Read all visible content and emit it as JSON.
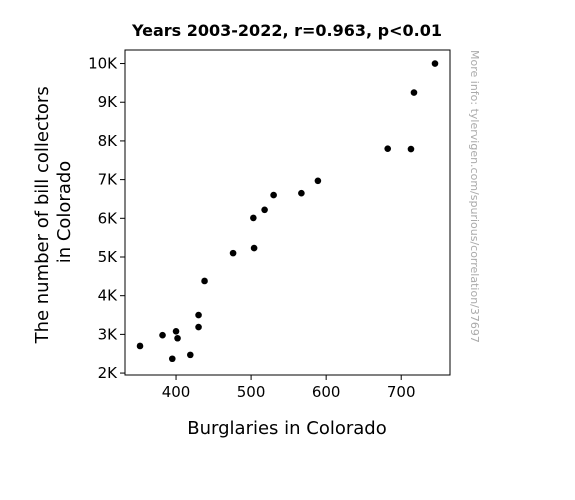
{
  "chart_data": {
    "type": "scatter",
    "title": "Years 2003-2022, r=0.963, p<0.01",
    "xlabel": "Burglaries in Colorado",
    "ylabel_lines": [
      "The number of bill collectors",
      "in Colorado"
    ],
    "xlim": [
      332,
      765
    ],
    "ylim": [
      1950,
      10350
    ],
    "x_ticks": [
      400,
      500,
      600,
      700
    ],
    "x_tick_labels": [
      "400",
      "500",
      "600",
      "700"
    ],
    "y_ticks": [
      2000,
      3000,
      4000,
      5000,
      6000,
      7000,
      8000,
      9000,
      10000
    ],
    "y_tick_labels": [
      "2K",
      "3K",
      "4K",
      "5K",
      "6K",
      "7K",
      "8K",
      "9K",
      "10K"
    ],
    "grid": false,
    "point_color": "#000000",
    "points": [
      {
        "x": 352,
        "y": 2700
      },
      {
        "x": 382,
        "y": 2980
      },
      {
        "x": 395,
        "y": 2370
      },
      {
        "x": 400,
        "y": 3080
      },
      {
        "x": 402,
        "y": 2900
      },
      {
        "x": 419,
        "y": 2470
      },
      {
        "x": 430,
        "y": 3500
      },
      {
        "x": 430,
        "y": 3190
      },
      {
        "x": 438,
        "y": 4380
      },
      {
        "x": 476,
        "y": 5100
      },
      {
        "x": 503,
        "y": 6010
      },
      {
        "x": 504,
        "y": 5230
      },
      {
        "x": 518,
        "y": 6220
      },
      {
        "x": 530,
        "y": 6600
      },
      {
        "x": 567,
        "y": 6650
      },
      {
        "x": 589,
        "y": 6970
      },
      {
        "x": 682,
        "y": 7800
      },
      {
        "x": 713,
        "y": 7790
      },
      {
        "x": 717,
        "y": 9250
      },
      {
        "x": 745,
        "y": 10000
      }
    ]
  },
  "watermark": "More info: tylervigen.com/spurious/correlation/37697"
}
